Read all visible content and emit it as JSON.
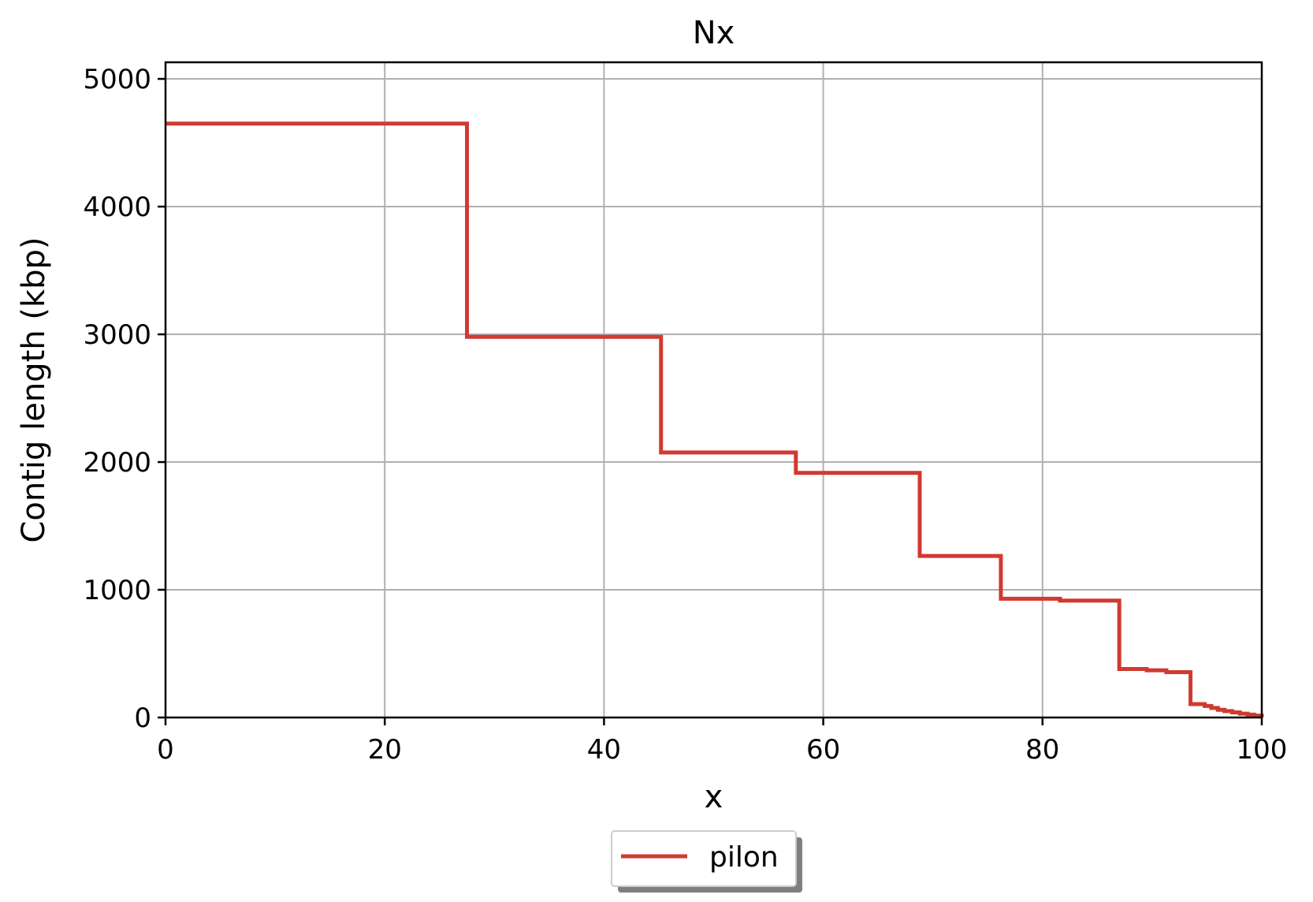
{
  "chart_data": {
    "type": "line",
    "title": "Nx",
    "xlabel": "x",
    "ylabel": "Contig length (kbp)",
    "xlim": [
      0,
      100
    ],
    "ylim": [
      0,
      5130
    ],
    "xticks": [
      0,
      20,
      40,
      60,
      80,
      100
    ],
    "yticks": [
      0,
      1000,
      2000,
      3000,
      4000,
      5000
    ],
    "grid": true,
    "legend_position": "bottom-center",
    "series": [
      {
        "name": "pilon",
        "color": "#d03a30",
        "step": true,
        "x": [
          0,
          27.5,
          45.2,
          57.5,
          68.8,
          76.2,
          81.6,
          87.0,
          89.5,
          91.3,
          93.5,
          94.8,
          95.4,
          96.0,
          96.6,
          97.3,
          98.0,
          98.7,
          99.3,
          100
        ],
        "y": [
          4650,
          2980,
          2075,
          1915,
          1265,
          930,
          915,
          380,
          370,
          355,
          105,
          90,
          75,
          60,
          50,
          40,
          30,
          22,
          15,
          0
        ]
      }
    ]
  }
}
